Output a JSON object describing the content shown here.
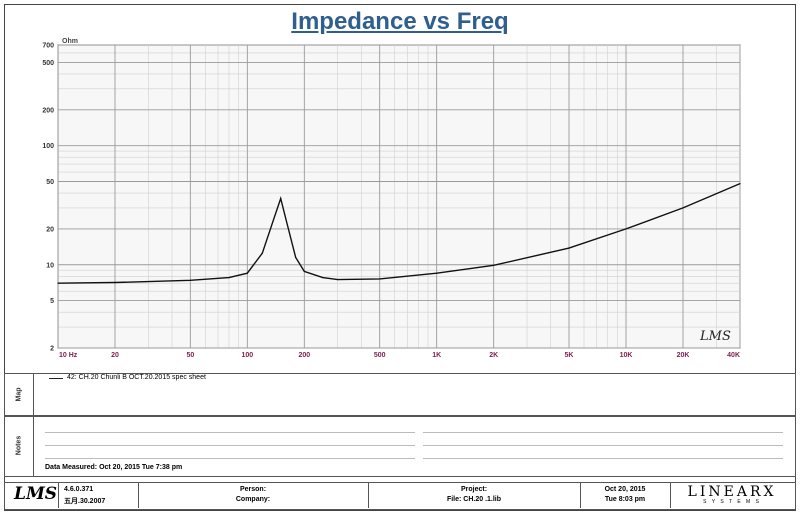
{
  "chart_data": {
    "type": "line",
    "title": "Impedance vs Freq",
    "y_unit": "Ohm",
    "x_scale": "log",
    "y_scale": "log",
    "xlim": [
      10,
      40000
    ],
    "ylim": [
      2,
      700
    ],
    "x_ticks": [
      "10 Hz",
      "20",
      "50",
      "100",
      "200",
      "500",
      "1K",
      "2K",
      "5K",
      "10K",
      "20K",
      "40K"
    ],
    "y_ticks": [
      "700",
      "500",
      "200",
      "100",
      "50",
      "20",
      "10",
      "5",
      "2"
    ],
    "series": [
      {
        "name": "42: CH.20 Chunli B OCT.20.2015 spec sheet",
        "x": [
          10,
          20,
          50,
          80,
          100,
          120,
          140,
          150,
          160,
          180,
          200,
          250,
          300,
          500,
          1000,
          2000,
          5000,
          10000,
          20000,
          40000
        ],
        "y": [
          7.0,
          7.1,
          7.4,
          7.8,
          8.5,
          12.5,
          26,
          36,
          24,
          11.5,
          8.8,
          7.8,
          7.5,
          7.6,
          8.5,
          9.9,
          13.8,
          20,
          30,
          48
        ]
      }
    ],
    "grid": true,
    "watermark": "LMS"
  },
  "map_panel": {
    "label": "Map",
    "legend_entry": "42: CH.20  Chunli B OCT.20.2015  spec sheet"
  },
  "notes_panel": {
    "label": "Notes",
    "data_measured": "Data Measured: Oct 20, 2015   Tue   7:38 pm"
  },
  "footer": {
    "logo": "LMS",
    "version": "4.6.0.371",
    "build_date": "五月.30.2007",
    "person_label": "Person:",
    "company_label": "Company:",
    "project_label": "Project:",
    "file_label": "File: CH.20  .1.lib",
    "date": "Oct 20, 2015",
    "day_time": "Tue  8:03 pm",
    "brand": "LINEARX",
    "brand_sub": "S Y S T E M S"
  }
}
